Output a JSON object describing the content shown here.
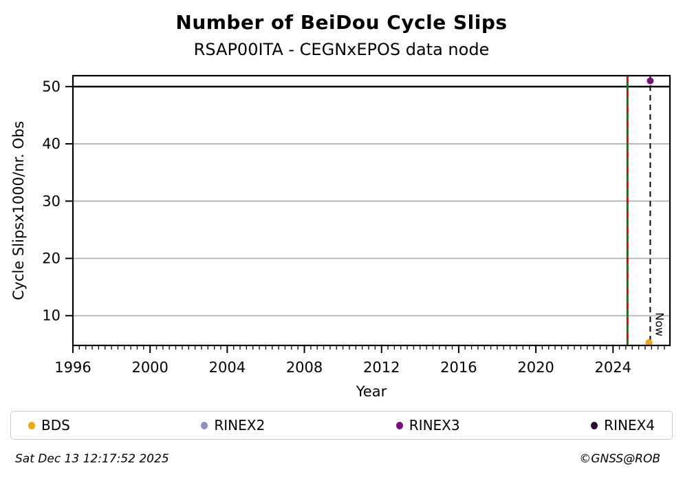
{
  "header": {
    "title": "Number of BeiDou Cycle Slips",
    "subtitle": "RSAP00ITA - CEGNxEPOS data node"
  },
  "chart_data": {
    "type": "scatter",
    "title": "Number of BeiDou Cycle Slips",
    "subtitle": "RSAP00ITA - CEGNxEPOS data node",
    "xlabel": "Year",
    "ylabel": "Cycle Slipsx1000/nr. Obs",
    "xlim": [
      1996,
      2026.95
    ],
    "ylim": [
      4.8,
      51.9
    ],
    "x_major_ticks": [
      1996,
      2000,
      2004,
      2008,
      2012,
      2016,
      2020,
      2024
    ],
    "x_minor_step": 0.3333,
    "y_ticks": [
      10,
      20,
      30,
      40,
      50
    ],
    "grid": true,
    "grid_color": "#b3b3b3",
    "hline": {
      "y": 50,
      "color": "#000000",
      "width": 2.5
    },
    "vlines": [
      {
        "name": "event-line",
        "x": 2024.75,
        "style": "solid",
        "color": "#0a7a0a",
        "overlay_dash_color": "#e00000",
        "width": 3
      },
      {
        "name": "now-line",
        "x": 2025.93,
        "style": "dashed",
        "color": "#000000",
        "width": 2,
        "label": "Now"
      }
    ],
    "series": [
      {
        "name": "BDS",
        "color": "#f7a500",
        "points": [
          {
            "x": 2025.86,
            "y": 5.3
          }
        ]
      },
      {
        "name": "RINEX2",
        "color": "#8f8fc8",
        "points": []
      },
      {
        "name": "RINEX3",
        "color": "#7d0c7d",
        "points": [
          {
            "x": 2025.93,
            "y": 51.0
          }
        ]
      },
      {
        "name": "RINEX4",
        "color": "#2e0b33",
        "points": []
      }
    ]
  },
  "legend": {
    "items": [
      {
        "label": "BDS",
        "color": "#f7a500"
      },
      {
        "label": "RINEX2",
        "color": "#8f8fc8"
      },
      {
        "label": "RINEX3",
        "color": "#7d0c7d"
      },
      {
        "label": "RINEX4",
        "color": "#2e0b33"
      }
    ]
  },
  "footer": {
    "timestamp": "Sat Dec 13 12:17:52 2025",
    "credit": "©GNSS@ROB"
  }
}
